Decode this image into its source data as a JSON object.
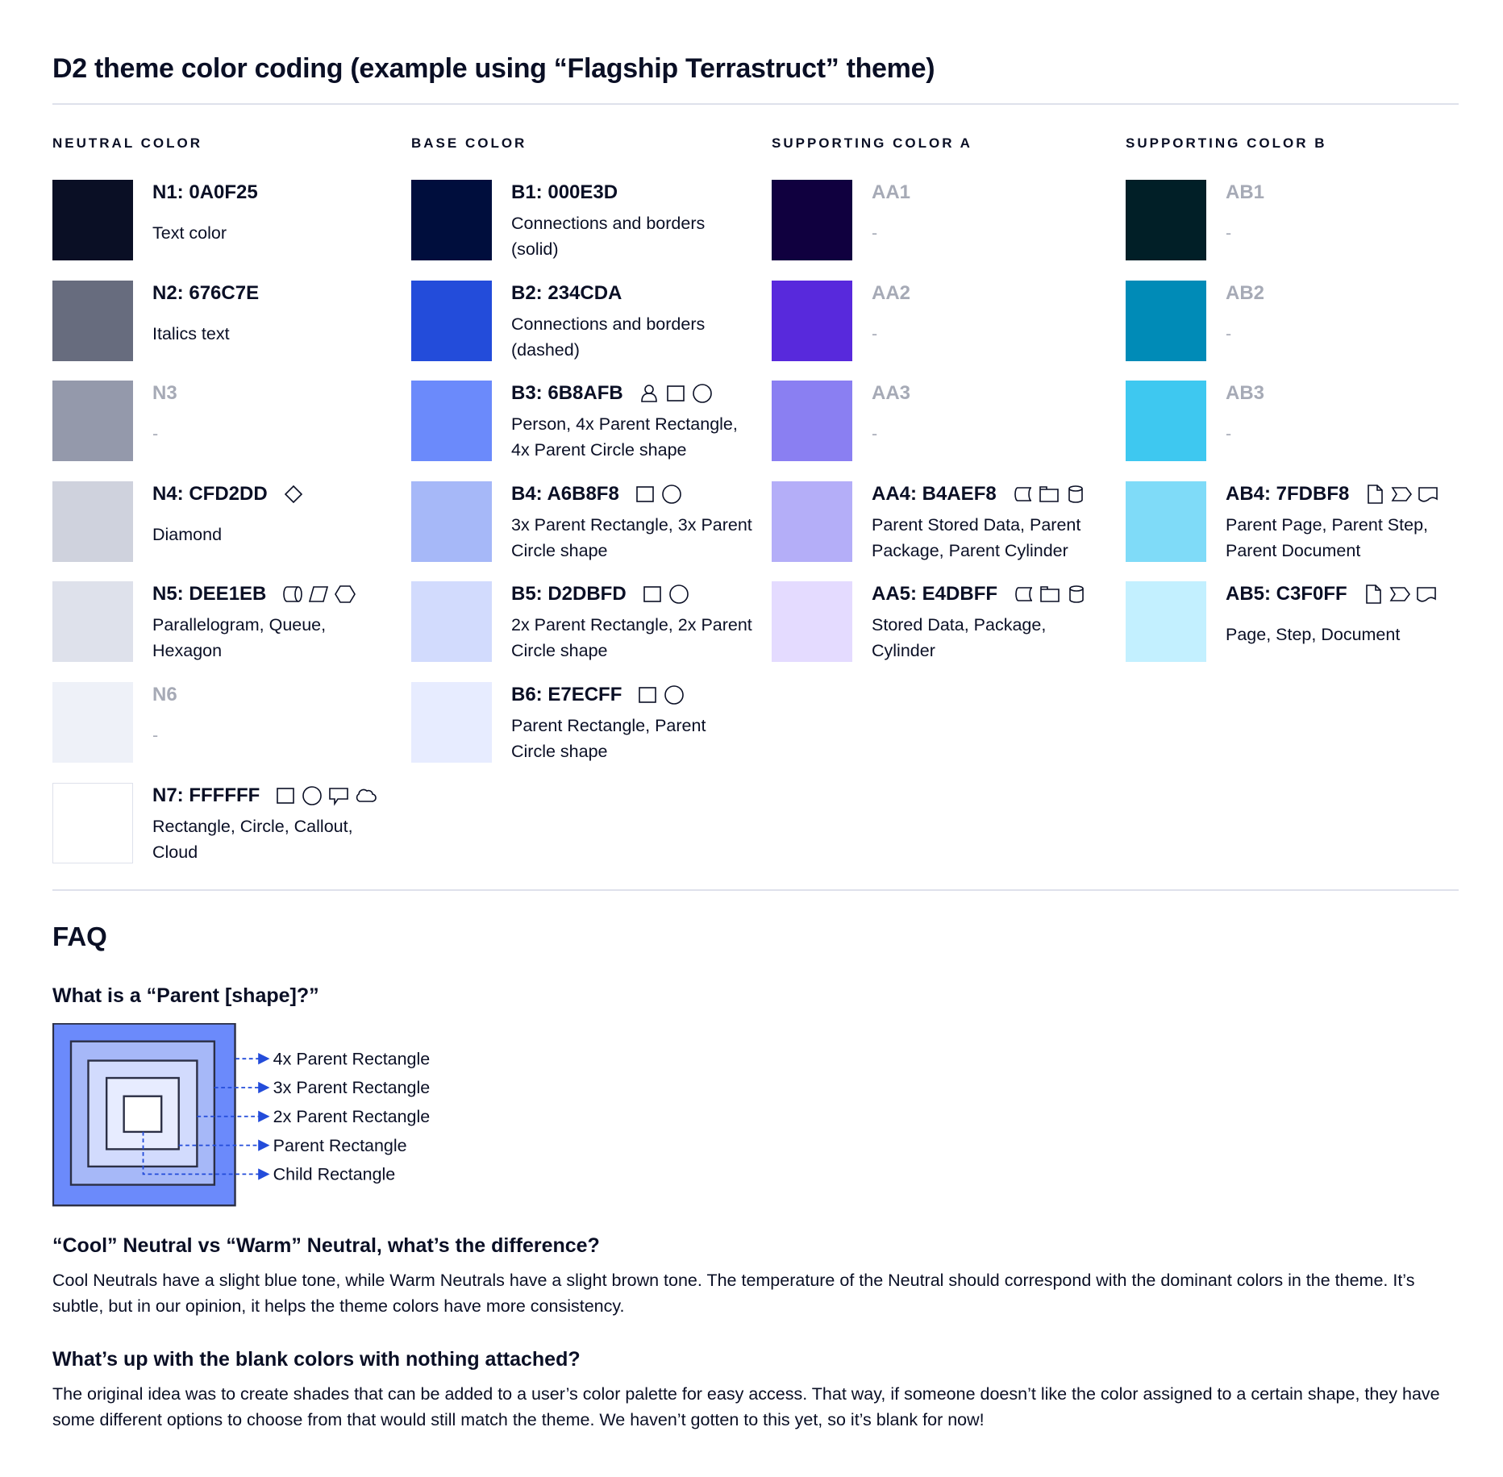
{
  "title": "D2 theme color coding (example using “Flagship Terrastruct” theme)",
  "columns": [
    {
      "heading": "NEUTRAL COLOR",
      "entries": [
        {
          "label": "N1: 0A0F25",
          "color": "#0A0F25",
          "desc": "Text color",
          "icons": []
        },
        {
          "label": "N2: 676C7E",
          "color": "#676C7E",
          "desc": "Italics text",
          "icons": []
        },
        {
          "label": "N3",
          "color": "#9499AB",
          "desc": "-",
          "icons": [],
          "blank": true
        },
        {
          "label": "N4: CFD2DD",
          "color": "#CFD2DD",
          "desc": "Diamond",
          "icons": [
            "diamond"
          ]
        },
        {
          "label": "N5: DEE1EB",
          "color": "#DEE1EB",
          "desc": "Parallelogram, Queue, Hexagon",
          "icons": [
            "queue",
            "parallelogram",
            "hexagon"
          ]
        },
        {
          "label": "N6",
          "color": "#EEF1F8",
          "desc": "-",
          "icons": [],
          "blank": true
        },
        {
          "label": "N7: FFFFFF",
          "color": "#FFFFFF",
          "desc": "Rectangle, Circle, Callout, Cloud",
          "icons": [
            "rectangle",
            "circle",
            "callout",
            "cloud"
          ]
        }
      ]
    },
    {
      "heading": "BASE COLOR",
      "entries": [
        {
          "label": "B1: 000E3D",
          "color": "#000E3D",
          "desc": "Connections and borders (solid)",
          "icons": []
        },
        {
          "label": "B2: 234CDA",
          "color": "#234CDA",
          "desc": "Connections and borders (dashed)",
          "icons": []
        },
        {
          "label": "B3: 6B8AFB",
          "color": "#6B8AFB",
          "desc": "Person, 4x Parent Rectangle, 4x Parent Circle shape",
          "icons": [
            "person",
            "rectangle",
            "circle"
          ]
        },
        {
          "label": "B4: A6B8F8",
          "color": "#A6B8F8",
          "desc": "3x Parent Rectangle, 3x Parent Circle shape",
          "icons": [
            "rectangle",
            "circle"
          ]
        },
        {
          "label": "B5: D2DBFD",
          "color": "#D2DBFD",
          "desc": "2x Parent Rectangle, 2x Parent Circle shape",
          "icons": [
            "rectangle",
            "circle"
          ]
        },
        {
          "label": "B6: E7ECFF",
          "color": "#E7ECFF",
          "desc": "Parent Rectangle, Parent Circle shape",
          "icons": [
            "rectangle",
            "circle"
          ]
        }
      ]
    },
    {
      "heading": "SUPPORTING COLOR A",
      "entries": [
        {
          "label": "AA1",
          "color": "#10003F",
          "desc": "-",
          "icons": [],
          "blank": true
        },
        {
          "label": "AA2",
          "color": "#5829DC",
          "desc": "-",
          "icons": [],
          "blank": true
        },
        {
          "label": "AA3",
          "color": "#8A7FF2",
          "desc": "-",
          "icons": [],
          "blank": true
        },
        {
          "label": "AA4: B4AEF8",
          "color": "#B4AEF8",
          "desc": "Parent Stored Data, Parent Package,  Parent Cylinder",
          "icons": [
            "stored-data",
            "package",
            "cylinder"
          ]
        },
        {
          "label": "AA5: E4DBFF",
          "color": "#E4DBFF",
          "desc": "Stored Data, Package, Cylinder",
          "icons": [
            "stored-data",
            "package",
            "cylinder"
          ]
        }
      ]
    },
    {
      "heading": "SUPPORTING COLOR B",
      "entries": [
        {
          "label": "AB1",
          "color": "#011F27",
          "desc": "-",
          "icons": [],
          "blank": true
        },
        {
          "label": "AB2",
          "color": "#008BB7",
          "desc": "-",
          "icons": [],
          "blank": true
        },
        {
          "label": "AB3",
          "color": "#3EC8F0",
          "desc": "-",
          "icons": [],
          "blank": true
        },
        {
          "label": "AB4: 7FDBF8",
          "color": "#7FDBF8",
          "desc": "Parent Page, Parent Step, Parent Document",
          "icons": [
            "page",
            "step",
            "document"
          ]
        },
        {
          "label": "AB5: C3F0FF",
          "color": "#C3F0FF",
          "desc": "Page, Step, Document",
          "icons": [
            "page",
            "step",
            "document"
          ]
        }
      ]
    }
  ],
  "faq": {
    "title": "FAQ",
    "q1": "What is a “Parent [shape]?”",
    "diagram_labels": [
      "4x Parent Rectangle",
      "3x Parent Rectangle",
      "2x Parent Rectangle",
      "Parent Rectangle",
      "Child Rectangle"
    ],
    "diagram_colors": [
      "#6B8AFB",
      "#A6B8F8",
      "#D2DBFD",
      "#E7ECFF",
      "#FFFFFF"
    ],
    "q2": "“Cool” Neutral vs “Warm” Neutral, what’s the difference?",
    "a2": "Cool Neutrals have a slight blue tone, while Warm Neutrals have a slight brown tone. The temperature of the Neutral should correspond with the dominant colors in the theme. It’s subtle, but in our opinion, it helps the theme colors have more consistency.",
    "q3": "What’s up with the blank colors with nothing attached?",
    "a3": "The original idea was to create shades that can be added to a user’s color palette for easy access. That way, if someone doesn’t like the color assigned to a certain shape, they have some different options to choose from that would still match the theme. We haven’t gotten to this yet, so it’s blank for now!"
  }
}
